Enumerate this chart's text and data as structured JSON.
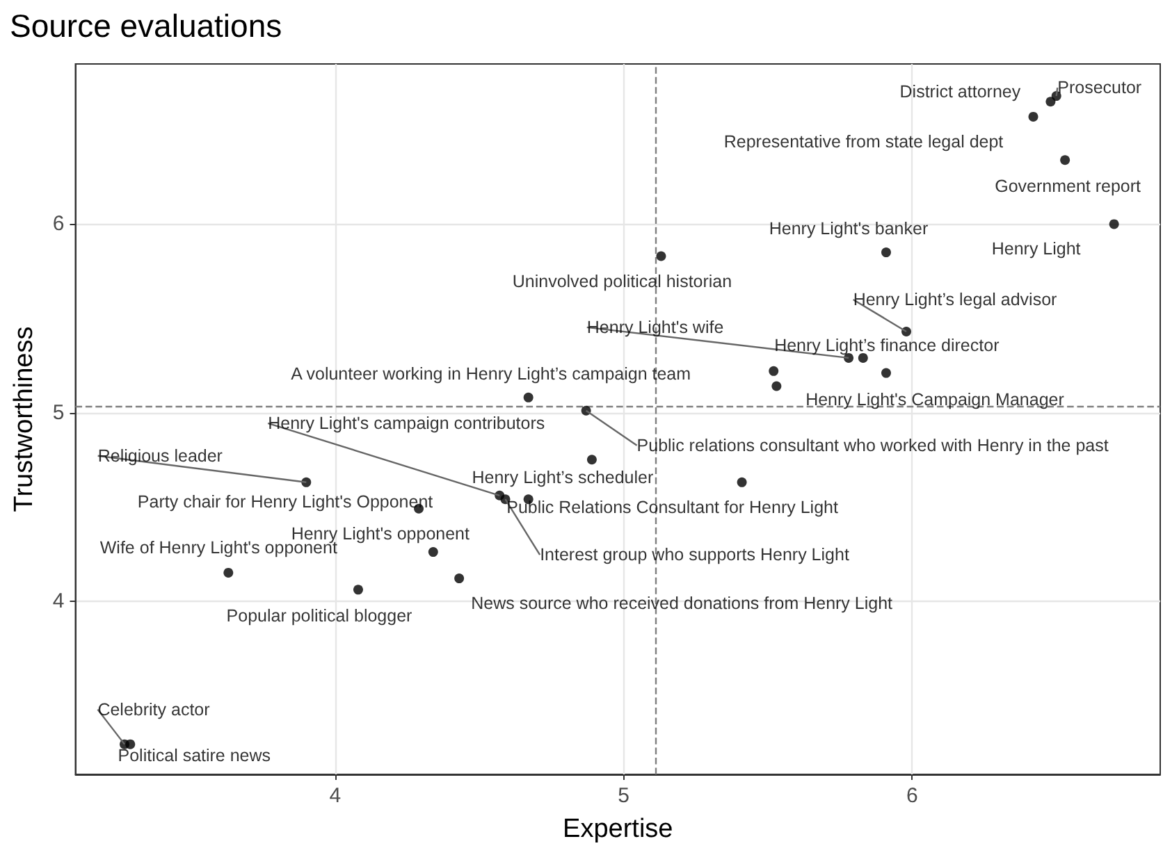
{
  "chart_data": {
    "type": "scatter",
    "title": "Source evaluations",
    "xlabel": "Expertise",
    "ylabel": "Trustworthiness",
    "xlim": [
      3.1,
      6.86
    ],
    "ylim": [
      3.08,
      6.85
    ],
    "xticks": [
      4,
      5,
      6
    ],
    "yticks": [
      4,
      5,
      6
    ],
    "grid": true,
    "marker": "circle",
    "series": [
      {
        "color": "#000000",
        "x": [
          6.5,
          6.48,
          6.42,
          6.53,
          6.7,
          5.91,
          5.13,
          5.98,
          5.78,
          5.83,
          5.91,
          5.52,
          5.53,
          4.67,
          4.87,
          4.89,
          3.9,
          4.57,
          4.59,
          4.67,
          4.29,
          4.34,
          3.63,
          4.43,
          4.08,
          3.27,
          3.29,
          5.41
        ],
        "values": [
          6.68,
          6.65,
          6.57,
          6.34,
          6.0,
          5.85,
          5.83,
          5.43,
          5.29,
          5.29,
          5.21,
          5.22,
          5.14,
          5.08,
          5.01,
          4.75,
          4.63,
          4.56,
          4.54,
          4.54,
          4.49,
          4.26,
          4.15,
          4.12,
          4.06,
          3.24,
          3.24,
          4.63
        ]
      }
    ],
    "ref_lines": [
      {
        "axis": "x",
        "value": 5.11,
        "color": "#7f7f7f",
        "line_style": "dashed"
      },
      {
        "axis": "y",
        "value": 5.03,
        "color": "#7f7f7f",
        "line_style": "dashed"
      }
    ],
    "annotations": [
      {
        "text": "Prosecutor",
        "x": 6.5,
        "y": 6.68
      },
      {
        "text": "District attorney",
        "x": 6.48,
        "y": 6.65
      },
      {
        "text": "Representative from state legal dept",
        "x": 6.42,
        "y": 6.57
      },
      {
        "text": "Government report",
        "x": 6.53,
        "y": 6.34
      },
      {
        "text": "Henry Light",
        "x": 6.7,
        "y": 6.0
      },
      {
        "text": "Henry Light's banker",
        "x": 5.91,
        "y": 5.85
      },
      {
        "text": "Uninvolved political historian",
        "x": 5.13,
        "y": 5.83
      },
      {
        "text": "Henry Light’s legal advisor",
        "x": 5.98,
        "y": 5.43
      },
      {
        "text": "Henry Light's wife",
        "x": 5.78,
        "y": 5.29
      },
      {
        "text": "Henry Light’s finance director",
        "x": 5.83,
        "y": 5.29
      },
      {
        "text": "A volunteer working in Henry Light’s campaign team",
        "x": 4.67,
        "y": 5.08
      },
      {
        "text": "Henry Light's Campaign Manager",
        "x": 5.91,
        "y": 5.21
      },
      {
        "text": "Henry Light's campaign contributors",
        "x": 4.57,
        "y": 4.56
      },
      {
        "text": "Public relations consultant who worked with Henry in the past",
        "x": 4.87,
        "y": 5.01
      },
      {
        "text": "Religious leader",
        "x": 3.9,
        "y": 4.63
      },
      {
        "text": "Henry Light’s scheduler",
        "x": 4.89,
        "y": 4.75
      },
      {
        "text": "Party chair for Henry Light's Opponent",
        "x": 4.29,
        "y": 4.49
      },
      {
        "text": "Interest group who supports Henry Light",
        "x": 4.59,
        "y": 4.54
      },
      {
        "text": "Henry Light's opponent",
        "x": 4.34,
        "y": 4.26
      },
      {
        "text": "Wife of Henry Light's opponent",
        "x": 3.63,
        "y": 4.15
      },
      {
        "text": "News source who received donations from Henry Light",
        "x": 4.43,
        "y": 4.12
      },
      {
        "text": "Popular political blogger",
        "x": 4.08,
        "y": 4.06
      },
      {
        "text": "Celebrity actor",
        "x": 3.27,
        "y": 3.24
      },
      {
        "text": "Political satire news",
        "x": 3.29,
        "y": 3.24
      },
      {
        "text": "Public Relations Consultant for Henry Light",
        "x": 5.41,
        "y": 4.63
      }
    ]
  }
}
